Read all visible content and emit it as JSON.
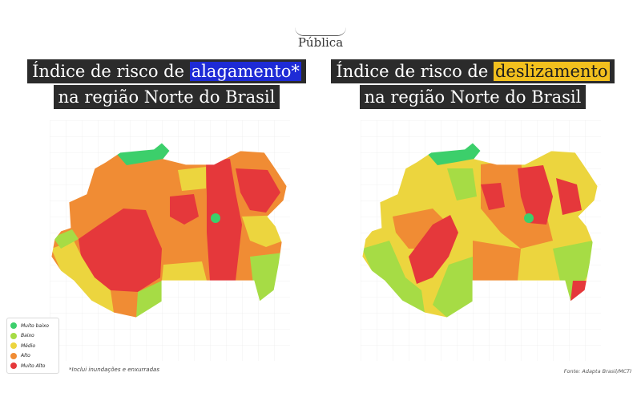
{
  "brand": {
    "name": "Pública"
  },
  "maps": [
    {
      "title_prefix": "Índice de risco de ",
      "title_highlight": "alagamento*",
      "title_line2": "na região Norte do Brasil",
      "highlight_color": "#1e2bd6",
      "dominant_levels": [
        "Alto",
        "Muito Alto",
        "Médio"
      ]
    },
    {
      "title_prefix": "Índice de risco de ",
      "title_highlight": "deslizamento",
      "title_line2": "na região Norte do Brasil",
      "highlight_color": "#f2c01e",
      "dominant_levels": [
        "Médio",
        "Alto",
        "Muito Alto"
      ]
    }
  ],
  "legend": {
    "items": [
      {
        "label": "Muito baixo",
        "color": "#3ccf6b"
      },
      {
        "label": "Baixo",
        "color": "#a6dc45"
      },
      {
        "label": "Médio",
        "color": "#ecd53e"
      },
      {
        "label": "Alto",
        "color": "#f08c34"
      },
      {
        "label": "Muito Alto",
        "color": "#e5383b"
      }
    ]
  },
  "footnote": "*Inclui inundações e enxurradas",
  "source": "Fonte: Adapta Brasil/MCTI"
}
